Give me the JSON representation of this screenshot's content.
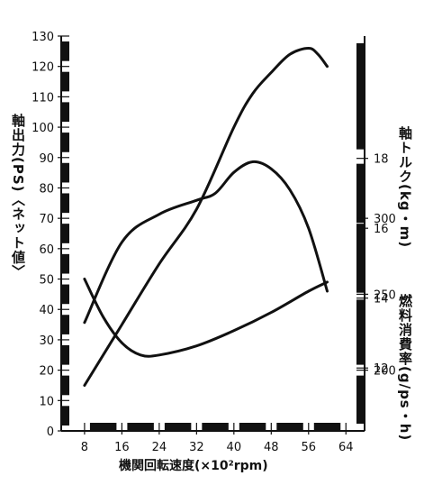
{
  "chart_data": {
    "type": "line",
    "title": "",
    "xlabel": "機関回転速度(×10²rpm)",
    "ylabel_left": "軸出力(PS)〈ネット値〉",
    "ylabel_right_torque": "軸トルク(kg・m)",
    "ylabel_right_fuel": "燃料消費率(g/ps・h)",
    "x_ticks": [
      "8",
      "16",
      "24",
      "32",
      "40",
      "48",
      "56",
      "64"
    ],
    "x_range": [
      3,
      68
    ],
    "y_left_ticks": [
      "0",
      "10",
      "20",
      "30",
      "40",
      "50",
      "60",
      "70",
      "80",
      "90",
      "100",
      "110",
      "120",
      "130"
    ],
    "y_left_range": [
      0,
      130
    ],
    "y_torque_ticks": [
      "12",
      "14",
      "16",
      "18"
    ],
    "y_torque_range": [
      10.2,
      21.5
    ],
    "y_fuel_ticks": [
      "200",
      "250",
      "300"
    ],
    "y_fuel_range": [
      160,
      420
    ],
    "grid": false,
    "series": [
      {
        "axis": "left",
        "x": [
          8,
          16,
          24,
          32,
          40,
          44,
          48,
          52,
          56,
          58,
          60
        ],
        "y": [
          15,
          35,
          55,
          73,
          100,
          111,
          118,
          124,
          126,
          124,
          120
        ]
      },
      {
        "axis": "torque",
        "x": [
          8,
          16,
          24,
          32,
          36,
          40,
          44,
          48,
          52,
          56,
          60
        ],
        "y": [
          13.3,
          15.6,
          16.4,
          16.8,
          17.0,
          17.6,
          17.9,
          17.7,
          17.1,
          16.0,
          14.2
        ]
      },
      {
        "axis": "fuel",
        "x": [
          8,
          12,
          16,
          20,
          24,
          32,
          40,
          48,
          56,
          60
        ],
        "y": [
          260,
          235,
          218,
          210,
          210,
          216,
          226,
          238,
          252,
          258
        ]
      }
    ]
  }
}
